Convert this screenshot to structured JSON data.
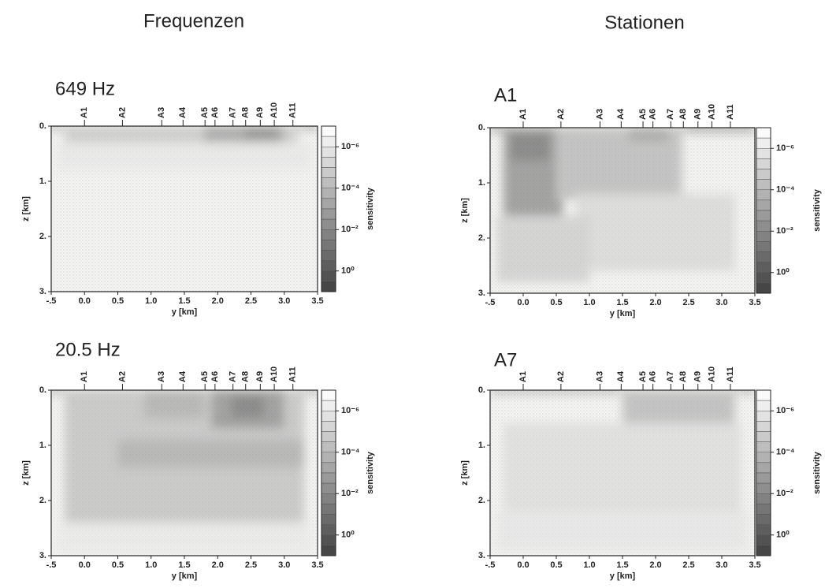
{
  "headings": [
    "Frequenzen",
    "Stationen"
  ],
  "chart_data": [
    {
      "type": "heatmap",
      "title": "649 Hz",
      "xlabel": "y [km]",
      "ylabel": "z [km]",
      "colorbar_label": "sensitivity",
      "xlim": [
        -0.5,
        3.5
      ],
      "xticks": [
        {
          "value": -0.5,
          "label": "-.5"
        },
        {
          "value": 0,
          "label": "0.0"
        },
        {
          "value": 0.5,
          "label": "0.5"
        },
        {
          "value": 1,
          "label": "1.0"
        },
        {
          "value": 1.5,
          "label": "1.5"
        },
        {
          "value": 2,
          "label": "2.0"
        },
        {
          "value": 2.5,
          "label": "2.5"
        },
        {
          "value": 3,
          "label": "3.0"
        },
        {
          "value": 3.5,
          "label": "3.5"
        }
      ],
      "ylim": [
        0,
        3
      ],
      "y_inverted": true,
      "yticks": [
        {
          "value": 0,
          "label": "0."
        },
        {
          "value": 1,
          "label": "1."
        },
        {
          "value": 2,
          "label": "2."
        },
        {
          "value": 3,
          "label": "3."
        }
      ],
      "stations": {
        "names": [
          "A1",
          "A2",
          "A3",
          "A4",
          "A5",
          "A6",
          "A7",
          "A8",
          "A9",
          "A10",
          "A11"
        ],
        "positions": [
          0.0,
          0.57,
          1.16,
          1.48,
          1.81,
          1.96,
          2.23,
          2.42,
          2.64,
          2.85,
          3.13
        ]
      },
      "clim": [
        1e-07,
        10
      ],
      "color_log": true,
      "cticks": [
        {
          "value": 1e-06,
          "label": "10⁻⁶"
        },
        {
          "value": 0.0001,
          "label": "10⁻⁴"
        },
        {
          "value": 0.01,
          "label": "10⁻²"
        },
        {
          "value": 1,
          "label": "10⁰"
        }
      ]
    },
    {
      "type": "heatmap",
      "title": "A1",
      "xlabel": "y [km]",
      "ylabel": "z [km]",
      "colorbar_label": "sensitivity",
      "xlim": [
        -0.5,
        3.5
      ],
      "xticks": [
        {
          "value": -0.5,
          "label": "-.5"
        },
        {
          "value": 0,
          "label": "0.0"
        },
        {
          "value": 0.5,
          "label": "0.5"
        },
        {
          "value": 1,
          "label": "1.0"
        },
        {
          "value": 1.5,
          "label": "1.5"
        },
        {
          "value": 2,
          "label": "2.0"
        },
        {
          "value": 2.5,
          "label": "2.5"
        },
        {
          "value": 3,
          "label": "3.0"
        },
        {
          "value": 3.5,
          "label": "3.5"
        }
      ],
      "ylim": [
        0,
        3
      ],
      "y_inverted": true,
      "yticks": [
        {
          "value": 0,
          "label": "0."
        },
        {
          "value": 1,
          "label": "1."
        },
        {
          "value": 2,
          "label": "2."
        },
        {
          "value": 3,
          "label": "3."
        }
      ],
      "stations": {
        "names": [
          "A1",
          "A2",
          "A3",
          "A4",
          "A5",
          "A6",
          "A7",
          "A8",
          "A9",
          "A10",
          "A11"
        ],
        "positions": [
          0.0,
          0.57,
          1.16,
          1.48,
          1.81,
          1.96,
          2.23,
          2.42,
          2.64,
          2.85,
          3.13
        ]
      },
      "clim": [
        1e-07,
        10
      ],
      "color_log": true,
      "cticks": [
        {
          "value": 1e-06,
          "label": "10⁻⁶"
        },
        {
          "value": 0.0001,
          "label": "10⁻⁴"
        },
        {
          "value": 0.01,
          "label": "10⁻²"
        },
        {
          "value": 1,
          "label": "10⁰"
        }
      ]
    },
    {
      "type": "heatmap",
      "title": "20.5 Hz",
      "xlabel": "y [km]",
      "ylabel": "z [km]",
      "colorbar_label": "sensitivity",
      "xlim": [
        -0.5,
        3.5
      ],
      "xticks": [
        {
          "value": -0.5,
          "label": "-.5"
        },
        {
          "value": 0,
          "label": "0.0"
        },
        {
          "value": 0.5,
          "label": "0.5"
        },
        {
          "value": 1,
          "label": "1.0"
        },
        {
          "value": 1.5,
          "label": "1.5"
        },
        {
          "value": 2,
          "label": "2.0"
        },
        {
          "value": 2.5,
          "label": "2.5"
        },
        {
          "value": 3,
          "label": "3.0"
        },
        {
          "value": 3.5,
          "label": "3.5"
        }
      ],
      "ylim": [
        0,
        3
      ],
      "y_inverted": true,
      "yticks": [
        {
          "value": 0,
          "label": "0."
        },
        {
          "value": 1,
          "label": "1."
        },
        {
          "value": 2,
          "label": "2."
        },
        {
          "value": 3,
          "label": "3."
        }
      ],
      "stations": {
        "names": [
          "A1",
          "A2",
          "A3",
          "A4",
          "A5",
          "A6",
          "A7",
          "A8",
          "A9",
          "A10",
          "A11"
        ],
        "positions": [
          0.0,
          0.57,
          1.16,
          1.48,
          1.81,
          1.96,
          2.23,
          2.42,
          2.64,
          2.85,
          3.13
        ]
      },
      "clim": [
        1e-07,
        10
      ],
      "color_log": true,
      "cticks": [
        {
          "value": 1e-06,
          "label": "10⁻⁶"
        },
        {
          "value": 0.0001,
          "label": "10⁻⁴"
        },
        {
          "value": 0.01,
          "label": "10⁻²"
        },
        {
          "value": 1,
          "label": "10⁰"
        }
      ]
    },
    {
      "type": "heatmap",
      "title": "A7",
      "xlabel": "y [km]",
      "ylabel": "z [km]",
      "colorbar_label": "sensitivity",
      "xlim": [
        -0.5,
        3.5
      ],
      "xticks": [
        {
          "value": -0.5,
          "label": "-.5"
        },
        {
          "value": 0,
          "label": "0.0"
        },
        {
          "value": 0.5,
          "label": "0.5"
        },
        {
          "value": 1,
          "label": "1.0"
        },
        {
          "value": 1.5,
          "label": "1.5"
        },
        {
          "value": 2,
          "label": "2.0"
        },
        {
          "value": 2.5,
          "label": "2.5"
        },
        {
          "value": 3,
          "label": "3.0"
        },
        {
          "value": 3.5,
          "label": "3.5"
        }
      ],
      "ylim": [
        0,
        3
      ],
      "y_inverted": true,
      "yticks": [
        {
          "value": 0,
          "label": "0."
        },
        {
          "value": 1,
          "label": "1."
        },
        {
          "value": 2,
          "label": "2."
        },
        {
          "value": 3,
          "label": "3."
        }
      ],
      "stations": {
        "names": [
          "A1",
          "A2",
          "A3",
          "A4",
          "A5",
          "A6",
          "A7",
          "A8",
          "A9",
          "A10",
          "A11"
        ],
        "positions": [
          0.0,
          0.57,
          1.16,
          1.48,
          1.81,
          1.96,
          2.23,
          2.42,
          2.64,
          2.85,
          3.13
        ]
      },
      "clim": [
        1e-07,
        10
      ],
      "color_log": true,
      "cticks": [
        {
          "value": 1e-06,
          "label": "10⁻⁶"
        },
        {
          "value": 0.0001,
          "label": "10⁻⁴"
        },
        {
          "value": 0.01,
          "label": "10⁻²"
        },
        {
          "value": 1,
          "label": "10⁰"
        }
      ]
    }
  ]
}
